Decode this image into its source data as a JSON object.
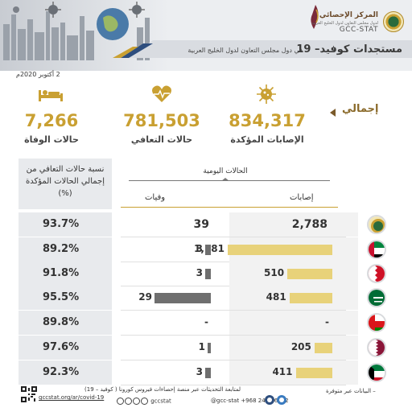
{
  "header": {
    "brand_ar": "المركز الإحصائي",
    "brand_sub": "لدول مجلس التعاون لدول الخليج العربية",
    "brand_en": "GCC-STAT",
    "title_main": "مستجدات كوفيد– 19",
    "title_sub": "في دول مجلس التعاون لدول الخليج العربية"
  },
  "date": "2 أكتوبر 2020م",
  "kpis": {
    "total_label": "إجمالي",
    "cases": {
      "value": "834,317",
      "label": "الإصابات المؤكدة",
      "icon": "virus-icon"
    },
    "recovered": {
      "value": "781,503",
      "label": "حالات التعافي",
      "icon": "heartbeat-icon"
    },
    "deaths": {
      "value": "7,266",
      "label": "حالات الوفاة",
      "icon": "patient-bed-icon"
    }
  },
  "table": {
    "recovery_header": "نسبة حالات التعافي من إجمالي الحالات المؤكدة (%)",
    "daily_header": "الحالات اليومية",
    "deaths_header": "وفيات",
    "cases_header": "إصابات",
    "rows": [
      {
        "country": "GCC",
        "flag": "gcc-emblem",
        "recovery_pct": "93.7%",
        "daily_cases": "2,788",
        "daily_deaths": "39",
        "case_fraction": 0,
        "death_fraction": 0,
        "total": true
      },
      {
        "country": "UAE",
        "flag": "uae-flag",
        "recovery_pct": "89.2%",
        "daily_cases": "1,181",
        "daily_deaths": "3",
        "case_fraction": 1.0,
        "death_fraction": 0.1
      },
      {
        "country": "Bahrain",
        "flag": "bahrain-flag",
        "recovery_pct": "91.8%",
        "daily_cases": "510",
        "daily_deaths": "3",
        "case_fraction": 0.43,
        "death_fraction": 0.1
      },
      {
        "country": "Saudi Arabia",
        "flag": "saudi-flag",
        "recovery_pct": "95.5%",
        "daily_cases": "481",
        "daily_deaths": "29",
        "case_fraction": 0.41,
        "death_fraction": 1.0
      },
      {
        "country": "Oman",
        "flag": "oman-flag",
        "recovery_pct": "89.8%",
        "daily_cases": "-",
        "daily_deaths": "-",
        "case_fraction": 0,
        "death_fraction": 0
      },
      {
        "country": "Qatar",
        "flag": "qatar-flag",
        "recovery_pct": "97.6%",
        "daily_cases": "205",
        "daily_deaths": "1",
        "case_fraction": 0.17,
        "death_fraction": 0.03
      },
      {
        "country": "Kuwait",
        "flag": "kuwait-flag",
        "recovery_pct": "92.3%",
        "daily_cases": "411",
        "daily_deaths": "3",
        "case_fraction": 0.35,
        "death_fraction": 0.1
      }
    ]
  },
  "footer": {
    "note": "لمتابعة التحديثات عبر منصة إحصاءات فيروس كورونا ( كوفيد – 19)",
    "url": "gccstat.org/ar/covid-19",
    "social": "gccstat",
    "phone": "@gcc-stat  +968 2434 6482",
    "source": "– البيانات عبر متوفرة"
  },
  "colors": {
    "accent_gold": "#c9a032",
    "case_bar": "#e8d27a",
    "death_bar": "#6f6f6f",
    "cell_grey": "#e8eaed"
  }
}
